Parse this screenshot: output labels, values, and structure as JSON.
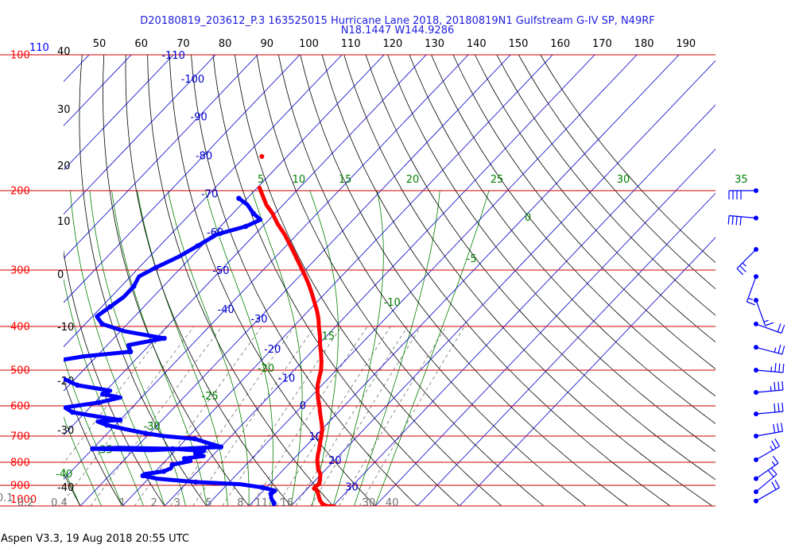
{
  "title": {
    "line1": "D20180819_203612_P.3 163525015 Hurricane Lane 2018, 20180819N1 Gulfstream G-IV SP, N49RF",
    "line2": "N18.1447 W144.9286"
  },
  "footer": "Aspen V3.3, 19 Aug 2018  20:55 UTC",
  "colors": {
    "temperature": "#ff0000",
    "dewpoint": "#0000ff",
    "isobar": "#cc0000",
    "isotherm": "#0000cc",
    "dry_adiabat": "#000000",
    "moist_adiabat": "#008000",
    "mixing_ratio": "#707070"
  },
  "chart_data": {
    "type": "skew-t log-p sounding",
    "pressure_axis": {
      "labels": [
        "100",
        "200",
        "300",
        "400",
        "500",
        "600",
        "700",
        "800",
        "900",
        "1000"
      ],
      "values": [
        100,
        200,
        300,
        400,
        500,
        600,
        700,
        800,
        900,
        1000
      ],
      "ylim": [
        1000,
        100
      ],
      "scale": "log"
    },
    "top_axis": {
      "label_left": "110",
      "labels": [
        "50",
        "60",
        "70",
        "80",
        "90",
        "100",
        "110",
        "120",
        "130",
        "140",
        "150",
        "160",
        "170",
        "180",
        "190"
      ]
    },
    "temperature_axis": {
      "labels": [
        "40",
        "30",
        "20",
        "10",
        "0",
        "-10",
        "-20",
        "-30",
        "-40"
      ],
      "values": [
        40,
        30,
        20,
        10,
        0,
        -10,
        -20,
        -30,
        -40
      ]
    },
    "isotherm_labels": [
      {
        "text": "-110",
        "t": -110,
        "p": 100
      },
      {
        "text": "-100",
        "t": -100,
        "p": 113
      },
      {
        "text": "-90",
        "t": -90,
        "p": 137
      },
      {
        "text": "-80",
        "t": -80,
        "p": 167
      },
      {
        "text": "-70",
        "t": -70,
        "p": 203
      },
      {
        "text": "-60",
        "t": -60,
        "p": 247
      },
      {
        "text": "-50",
        "t": -50,
        "p": 300
      },
      {
        "text": "-40",
        "t": -40,
        "p": 366
      },
      {
        "text": "-30",
        "t": -30,
        "p": 384
      },
      {
        "text": "-20",
        "t": -20,
        "p": 448
      },
      {
        "text": "-10",
        "t": -10,
        "p": 520
      },
      {
        "text": "0",
        "t": 0,
        "p": 598
      },
      {
        "text": "10",
        "t": 10,
        "p": 700
      },
      {
        "text": "20",
        "t": 20,
        "p": 790
      },
      {
        "text": "30",
        "t": 30,
        "p": 905
      }
    ],
    "moist_adiabat_labels": [
      {
        "text": "5",
        "t": -58.5,
        "p": 200
      },
      {
        "text": "10",
        "t": -49.5,
        "p": 200
      },
      {
        "text": "15",
        "t": -38.5,
        "p": 200
      },
      {
        "text": "20",
        "t": -22.5,
        "p": 200
      },
      {
        "text": "25",
        "t": -2.5,
        "p": 200
      },
      {
        "text": "30",
        "t": 27.5,
        "p": 200
      },
      {
        "text": "35",
        "t": 55.5,
        "p": 200
      },
      {
        "text": "0",
        "t": 13.5,
        "p": 243
      },
      {
        "text": "-5",
        "t": 9.5,
        "p": 300
      },
      {
        "text": "-10",
        "t": 0.5,
        "p": 375
      },
      {
        "text": "-15",
        "t": -7.5,
        "p": 445
      },
      {
        "text": "-20",
        "t": -14.5,
        "p": 525
      },
      {
        "text": "-25",
        "t": -21.5,
        "p": 605
      },
      {
        "text": "-30",
        "t": -28.5,
        "p": 705
      },
      {
        "text": "-35",
        "t": -34.5,
        "p": 795
      },
      {
        "text": "-40",
        "t": -38.5,
        "p": 900
      }
    ],
    "mixing_ratio_labels": [
      {
        "text": "0.1",
        "t": -49,
        "p": 975
      },
      {
        "text": "0.2",
        "t": -43,
        "p": 1000
      },
      {
        "text": "0.4",
        "t": -35,
        "p": 1000
      },
      {
        "text": "1",
        "t": -20,
        "p": 1000
      },
      {
        "text": "2",
        "t": -12.5,
        "p": 1000
      },
      {
        "text": "3",
        "t": -7,
        "p": 1000
      },
      {
        "text": "5",
        "t": 0.5,
        "p": 1000
      },
      {
        "text": "8",
        "t": 8,
        "p": 1000
      },
      {
        "text": "11",
        "t": 13,
        "p": 1000
      },
      {
        "text": "16",
        "t": 19,
        "p": 1000
      },
      {
        "text": "30",
        "t": 38.5,
        "p": 1000
      },
      {
        "text": "40",
        "t": 44,
        "p": 1000
      }
    ],
    "series": [
      {
        "id": "temperature",
        "points": [
          [
            1003,
            30.5
          ],
          [
            1000,
            28.5
          ],
          [
            990,
            27.0
          ],
          [
            970,
            25.5
          ],
          [
            945,
            24.0
          ],
          [
            925,
            22.8
          ],
          [
            915,
            21.5
          ],
          [
            900,
            21.5
          ],
          [
            895,
            21.8
          ],
          [
            880,
            21.2
          ],
          [
            865,
            20.5
          ],
          [
            850,
            19.8
          ],
          [
            830,
            18.2
          ],
          [
            810,
            17.0
          ],
          [
            790,
            15.8
          ],
          [
            770,
            14.8
          ],
          [
            750,
            13.9
          ],
          [
            720,
            12.4
          ],
          [
            700,
            11.4
          ],
          [
            680,
            10.3
          ],
          [
            660,
            8.9
          ],
          [
            640,
            7.3
          ],
          [
            620,
            5.7
          ],
          [
            600,
            4.1
          ],
          [
            580,
            2.3
          ],
          [
            560,
            0.6
          ],
          [
            540,
            -1.0
          ],
          [
            520,
            -2.3
          ],
          [
            500,
            -3.6
          ],
          [
            480,
            -5.3
          ],
          [
            460,
            -7.3
          ],
          [
            440,
            -9.5
          ],
          [
            420,
            -11.6
          ],
          [
            400,
            -14.0
          ],
          [
            385,
            -15.8
          ],
          [
            370,
            -17.9
          ],
          [
            355,
            -20.3
          ],
          [
            340,
            -22.8
          ],
          [
            325,
            -25.5
          ],
          [
            310,
            -28.5
          ],
          [
            295,
            -31.8
          ],
          [
            280,
            -35.3
          ],
          [
            265,
            -39.0
          ],
          [
            250,
            -43.0
          ],
          [
            237,
            -47.0
          ],
          [
            225,
            -50.5
          ],
          [
            215,
            -54.0
          ],
          [
            205,
            -57.0
          ],
          [
            197,
            -59.5
          ]
        ],
        "extra_point": [
          168,
          -66.0
        ]
      },
      {
        "id": "dewpoint",
        "points": [
          [
            1010,
            16.5
          ],
          [
            1000,
            16.0
          ],
          [
            985,
            15.3
          ],
          [
            960,
            13.5
          ],
          [
            940,
            12.5
          ],
          [
            925,
            12.8
          ],
          [
            910,
            9.0
          ],
          [
            895,
            3.0
          ],
          [
            885,
            -8.0
          ],
          [
            870,
            -18.0
          ],
          [
            857,
            -22.0
          ],
          [
            850,
            -22.0
          ],
          [
            838,
            -18.0
          ],
          [
            825,
            -17.0
          ],
          [
            810,
            -17.5
          ],
          [
            795,
            -14.0
          ],
          [
            785,
            -16.0
          ],
          [
            775,
            -12.0
          ],
          [
            765,
            -14.5
          ],
          [
            755,
            -13.0
          ],
          [
            747,
            -21.0
          ],
          [
            743,
            -34.0
          ],
          [
            747,
            -40.0
          ],
          [
            752,
            -26.0
          ],
          [
            740,
            -10.0
          ],
          [
            725,
            -14.0
          ],
          [
            710,
            -18.0
          ],
          [
            700,
            -26.0
          ],
          [
            690,
            -31.0
          ],
          [
            675,
            -37.0
          ],
          [
            662,
            -42.0
          ],
          [
            650,
            -45.0
          ],
          [
            645,
            -40.0
          ],
          [
            630,
            -48.0
          ],
          [
            620,
            -53.0
          ],
          [
            605,
            -56.0
          ],
          [
            590,
            -49.0
          ],
          [
            575,
            -45.0
          ],
          [
            565,
            -50.0
          ],
          [
            555,
            -49.0
          ],
          [
            540,
            -58.0
          ],
          [
            525,
            -62.0
          ],
          [
            510,
            -70.0
          ],
          [
            495,
            -73.0
          ],
          [
            480,
            -70.0
          ],
          [
            466,
            -63.0
          ],
          [
            455,
            -53.0
          ],
          [
            440,
            -55.0
          ],
          [
            425,
            -48.0
          ],
          [
            410,
            -59.0
          ],
          [
            395,
            -66.0
          ],
          [
            380,
            -69.0
          ],
          [
            362,
            -68.0
          ],
          [
            344,
            -67.0
          ],
          [
            326,
            -67.0
          ],
          [
            310,
            -68.0
          ],
          [
            296,
            -66.0
          ],
          [
            280,
            -63.0
          ],
          [
            265,
            -61.0
          ],
          [
            250,
            -59.0
          ],
          [
            240,
            -54.0
          ],
          [
            232,
            -52.0
          ],
          [
            225,
            -55.0
          ],
          [
            215,
            -58.5
          ],
          [
            208,
            -62.0
          ]
        ]
      }
    ],
    "wind_barbs": [
      {
        "p": 200,
        "dir": 270,
        "spd": 40
      },
      {
        "p": 230,
        "dir": 275,
        "spd": 40
      },
      {
        "p": 270,
        "dir": 225,
        "spd": 25
      },
      {
        "p": 310,
        "dir": 200,
        "spd": 15
      },
      {
        "p": 350,
        "dir": 160,
        "spd": 15
      },
      {
        "p": 395,
        "dir": 110,
        "spd": 20
      },
      {
        "p": 445,
        "dir": 105,
        "spd": 25
      },
      {
        "p": 500,
        "dir": 95,
        "spd": 35
      },
      {
        "p": 560,
        "dir": 85,
        "spd": 35
      },
      {
        "p": 625,
        "dir": 85,
        "spd": 30
      },
      {
        "p": 700,
        "dir": 80,
        "spd": 30
      },
      {
        "p": 790,
        "dir": 60,
        "spd": 25
      },
      {
        "p": 870,
        "dir": 55,
        "spd": 15
      },
      {
        "p": 930,
        "dir": 50,
        "spd": 20
      },
      {
        "p": 975,
        "dir": 60,
        "spd": 20
      }
    ]
  }
}
